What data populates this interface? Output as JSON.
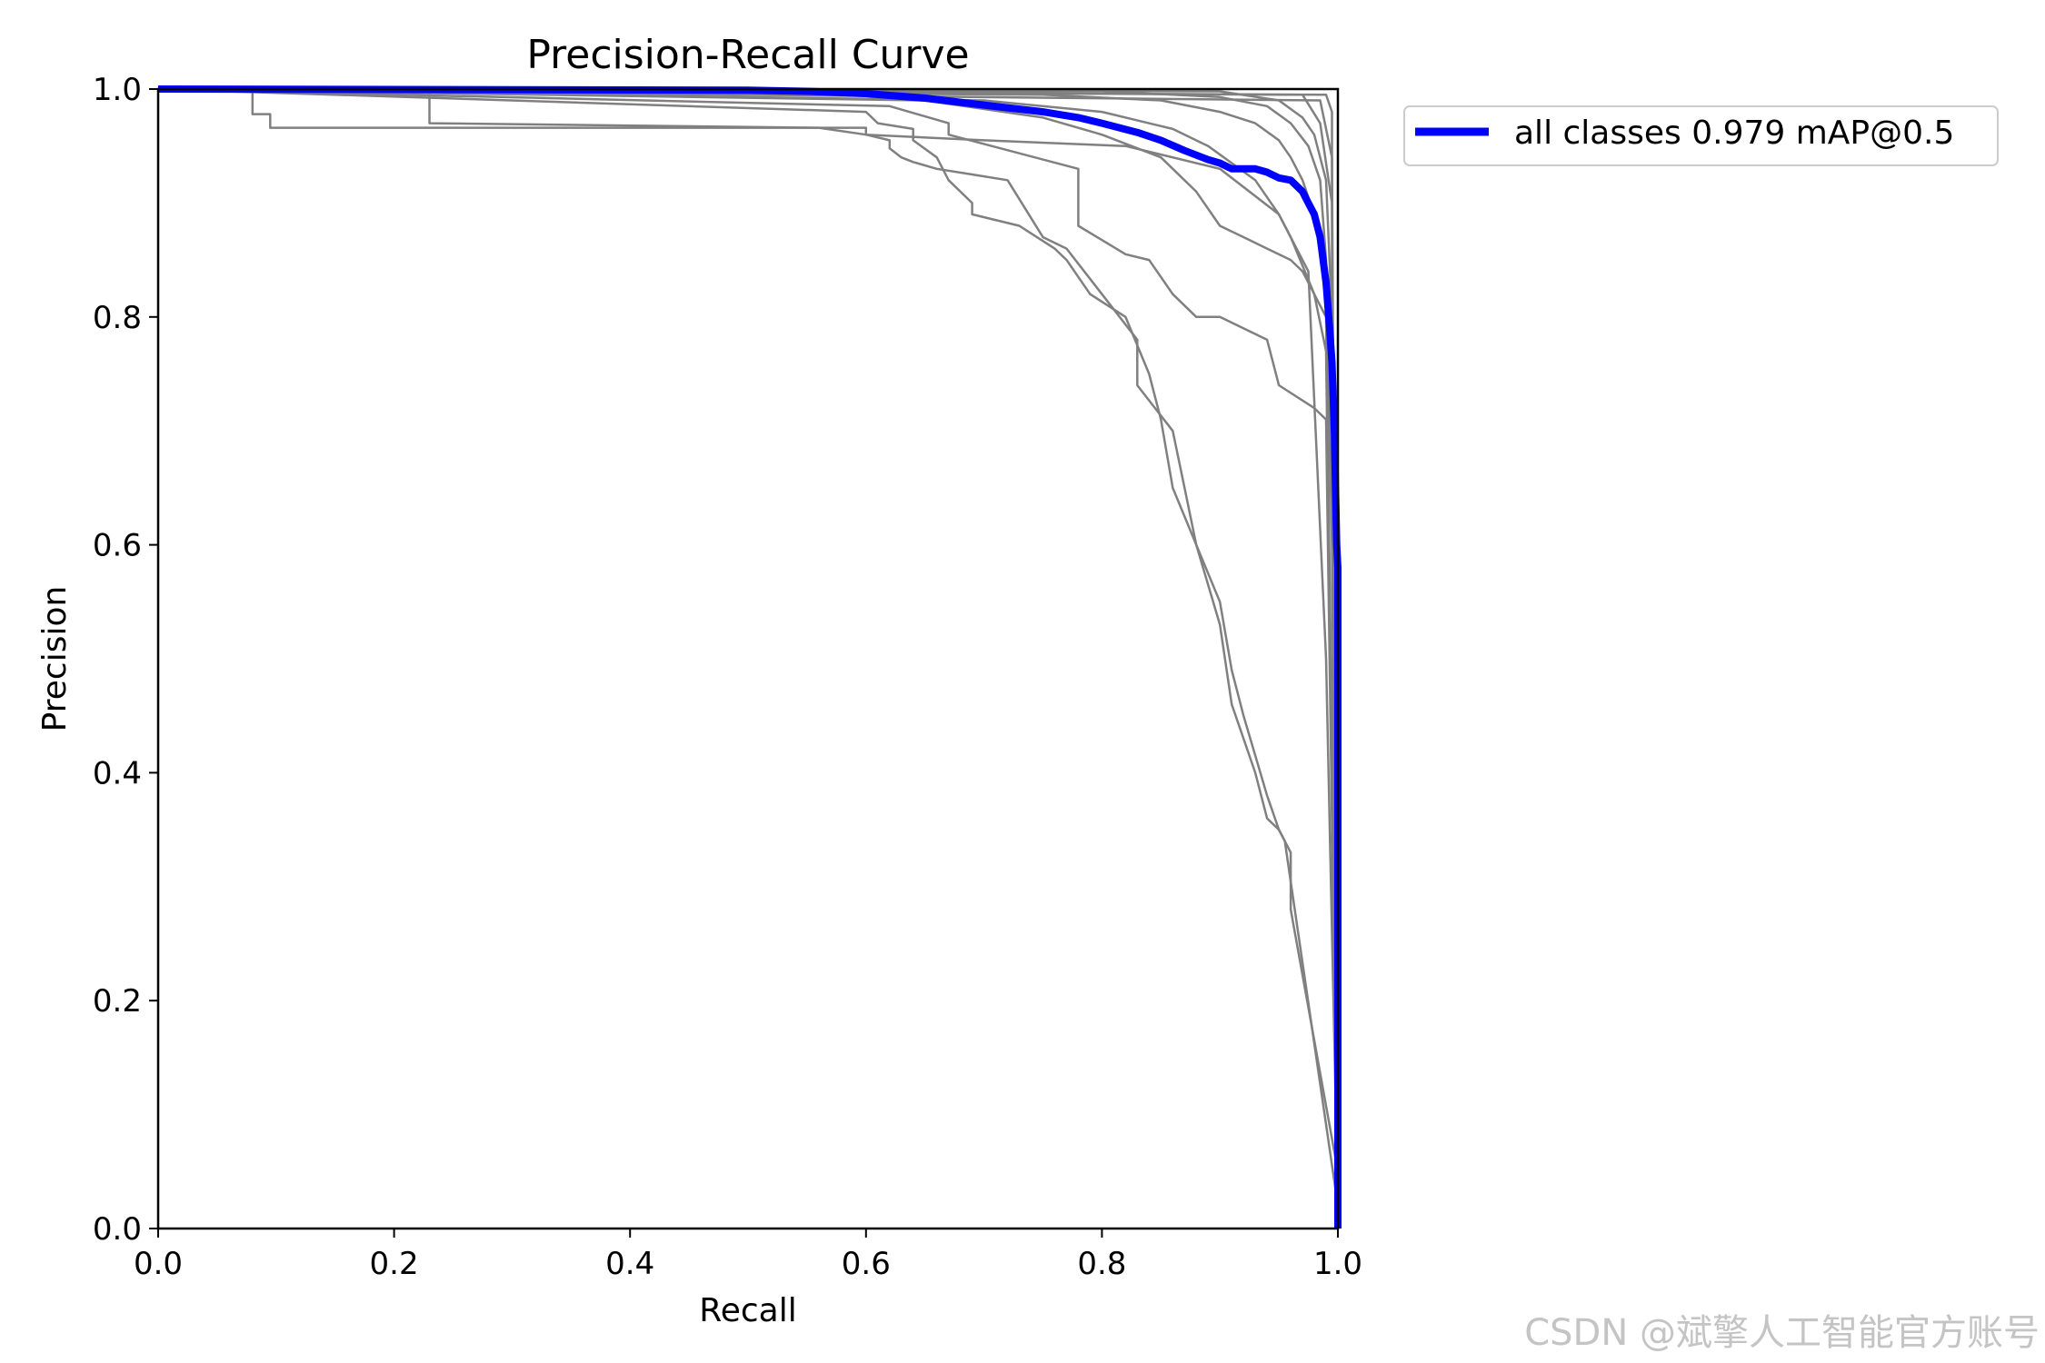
{
  "chart_data": {
    "type": "line",
    "title": "Precision-Recall Curve",
    "xlabel": "Recall",
    "ylabel": "Precision",
    "xlim": [
      0.0,
      1.0
    ],
    "ylim": [
      0.0,
      1.0
    ],
    "xticks": [
      "0.0",
      "0.2",
      "0.4",
      "0.6",
      "0.8",
      "1.0"
    ],
    "yticks": [
      "0.0",
      "0.2",
      "0.4",
      "0.6",
      "0.8",
      "1.0"
    ],
    "grid": false,
    "legend_position": "outside-top-right",
    "series": [
      {
        "role": "per-class",
        "color": "#808080",
        "x": [
          0,
          0.08,
          0.08,
          0.095,
          0.095,
          0.6,
          0.6,
          0.7,
          0.82,
          0.9,
          0.95,
          0.975,
          0.99,
          1.0,
          1.0
        ],
        "y": [
          1.0,
          1.0,
          0.978,
          0.978,
          0.966,
          0.966,
          0.96,
          0.955,
          0.95,
          0.93,
          0.89,
          0.84,
          0.5,
          0.02,
          0.0
        ]
      },
      {
        "role": "per-class",
        "color": "#808080",
        "x": [
          0,
          0.23,
          0.23,
          0.56,
          0.6,
          0.62,
          0.62,
          0.63,
          0.64,
          0.66,
          0.69,
          0.72,
          0.75,
          0.77,
          0.8,
          0.83,
          0.83,
          0.86,
          0.87,
          0.88,
          0.9,
          0.91,
          0.93,
          0.94,
          0.95,
          0.955,
          1.0
        ],
        "y": [
          1.0,
          1.0,
          0.97,
          0.966,
          0.96,
          0.955,
          0.948,
          0.94,
          0.936,
          0.93,
          0.925,
          0.92,
          0.87,
          0.86,
          0.82,
          0.78,
          0.74,
          0.7,
          0.65,
          0.6,
          0.53,
          0.46,
          0.4,
          0.36,
          0.35,
          0.34,
          0.02
        ]
      },
      {
        "role": "per-class",
        "color": "#808080",
        "x": [
          0,
          0.6,
          0.61,
          0.64,
          0.64,
          0.66,
          0.67,
          0.69,
          0.69,
          0.73,
          0.76,
          0.77,
          0.79,
          0.82,
          0.84,
          0.85,
          0.86,
          0.88,
          0.9,
          0.91,
          0.92,
          0.94,
          0.95,
          0.96,
          0.96,
          1.0
        ],
        "y": [
          1.0,
          0.98,
          0.97,
          0.965,
          0.955,
          0.94,
          0.92,
          0.9,
          0.89,
          0.88,
          0.86,
          0.85,
          0.82,
          0.8,
          0.75,
          0.71,
          0.65,
          0.6,
          0.55,
          0.49,
          0.45,
          0.38,
          0.35,
          0.33,
          0.28,
          0.05
        ]
      },
      {
        "role": "per-class",
        "color": "#808080",
        "x": [
          0,
          0.62,
          0.67,
          0.67,
          0.78,
          0.78,
          0.82,
          0.84,
          0.86,
          0.88,
          0.9,
          0.94,
          0.95,
          0.98,
          0.99,
          1.0
        ],
        "y": [
          1.0,
          0.985,
          0.97,
          0.96,
          0.93,
          0.88,
          0.855,
          0.85,
          0.82,
          0.8,
          0.8,
          0.78,
          0.74,
          0.72,
          0.71,
          0.0
        ]
      },
      {
        "role": "per-class",
        "color": "#808080",
        "x": [
          0,
          0.65,
          0.75,
          0.8,
          0.85,
          0.88,
          0.9,
          0.91,
          0.92,
          0.94,
          0.96,
          0.97,
          0.98,
          0.99,
          1.0
        ],
        "y": [
          1.0,
          0.99,
          0.975,
          0.96,
          0.94,
          0.91,
          0.88,
          0.875,
          0.87,
          0.86,
          0.85,
          0.84,
          0.82,
          0.77,
          0.0
        ]
      },
      {
        "role": "per-class",
        "color": "#808080",
        "x": [
          0,
          0.7,
          0.8,
          0.86,
          0.89,
          0.91,
          0.93,
          0.94,
          0.95,
          0.96,
          0.97,
          0.98,
          0.99,
          1.0
        ],
        "y": [
          1.0,
          0.99,
          0.98,
          0.965,
          0.95,
          0.935,
          0.92,
          0.905,
          0.89,
          0.87,
          0.845,
          0.82,
          0.8,
          0.0
        ]
      },
      {
        "role": "per-class",
        "color": "#808080",
        "x": [
          0,
          0.75,
          0.85,
          0.9,
          0.93,
          0.95,
          0.96,
          0.97,
          0.98,
          0.99,
          1.0
        ],
        "y": [
          1.0,
          0.995,
          0.99,
          0.98,
          0.97,
          0.955,
          0.94,
          0.92,
          0.89,
          0.82,
          0.0
        ]
      },
      {
        "role": "per-class",
        "color": "#808080",
        "x": [
          0,
          0.8,
          0.9,
          0.94,
          0.96,
          0.975,
          0.985,
          0.99,
          0.995,
          1.0
        ],
        "y": [
          1.0,
          0.998,
          0.993,
          0.985,
          0.97,
          0.95,
          0.92,
          0.85,
          0.6,
          0.0
        ]
      },
      {
        "role": "per-class",
        "color": "#808080",
        "x": [
          0,
          0.9,
          0.95,
          0.97,
          0.98,
          0.99,
          0.995,
          1.0,
          1.0
        ],
        "y": [
          1.0,
          0.998,
          0.99,
          0.975,
          0.96,
          0.92,
          0.8,
          0.5,
          0.0
        ]
      },
      {
        "role": "per-class",
        "color": "#808080",
        "x": [
          0,
          0.97,
          0.985,
          0.995,
          1.0
        ],
        "y": [
          1.0,
          0.995,
          0.97,
          0.9,
          0.0
        ]
      },
      {
        "role": "per-class",
        "color": "#808080",
        "x": [
          0,
          0.985,
          0.995,
          1.0
        ],
        "y": [
          1.0,
          0.99,
          0.94,
          0.0
        ]
      },
      {
        "role": "per-class",
        "color": "#808080",
        "x": [
          0,
          0.99,
          0.995,
          0.995,
          1.0
        ],
        "y": [
          1.0,
          0.995,
          0.98,
          0.7,
          0.0
        ]
      },
      {
        "name": "all classes 0.979 mAP@0.5",
        "role": "all",
        "color": "#0000ff",
        "x": [
          0,
          0.5,
          0.55,
          0.6,
          0.65,
          0.7,
          0.75,
          0.78,
          0.8,
          0.83,
          0.85,
          0.87,
          0.89,
          0.9,
          0.91,
          0.92,
          0.93,
          0.94,
          0.95,
          0.96,
          0.97,
          0.975,
          0.98,
          0.985,
          0.99,
          0.993,
          0.995,
          0.997,
          0.998,
          0.999,
          1.0,
          1.0
        ],
        "y": [
          1.0,
          0.999,
          0.998,
          0.996,
          0.992,
          0.986,
          0.98,
          0.975,
          0.97,
          0.962,
          0.955,
          0.946,
          0.938,
          0.935,
          0.93,
          0.93,
          0.93,
          0.927,
          0.922,
          0.92,
          0.91,
          0.9,
          0.89,
          0.87,
          0.83,
          0.79,
          0.76,
          0.7,
          0.65,
          0.6,
          0.58,
          0.0
        ]
      }
    ]
  },
  "watermark": "CSDN @斌擎人工智能官方账号"
}
